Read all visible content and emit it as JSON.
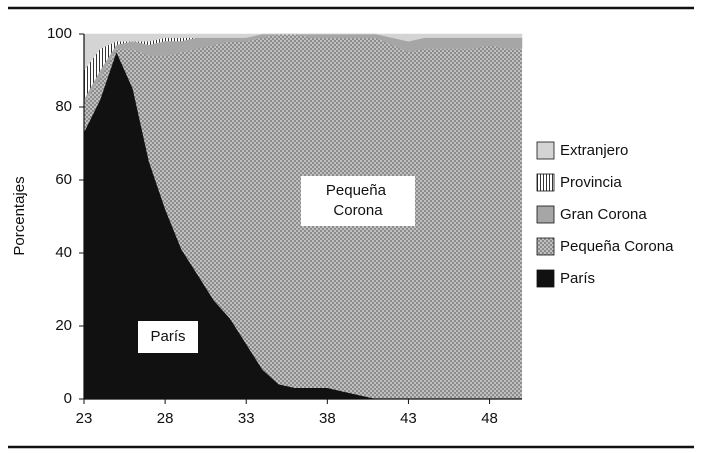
{
  "chart_data": {
    "type": "stacked-area",
    "y_label": "Porcentajes",
    "x": [
      23,
      24,
      25,
      26,
      27,
      28,
      29,
      30,
      31,
      32,
      33,
      34,
      35,
      36,
      37,
      38,
      39,
      40,
      41,
      42,
      43,
      44,
      45,
      46,
      47,
      48,
      49,
      50
    ],
    "xlim": [
      23,
      50
    ],
    "xticks": [
      23,
      28,
      33,
      38,
      43,
      48
    ],
    "ylim": [
      0,
      100
    ],
    "yticks": [
      0,
      20,
      40,
      60,
      80,
      100
    ],
    "series": [
      {
        "name": "París",
        "color": "#111111",
        "pattern": "solid",
        "values": [
          73,
          82,
          95,
          85,
          65,
          52,
          41,
          34,
          27,
          22,
          15,
          8,
          4,
          3,
          3,
          3,
          2,
          1,
          0,
          0,
          0,
          0,
          0,
          0,
          0,
          0,
          0,
          0
        ]
      },
      {
        "name": "Pequeña Corona",
        "color": "#8c8c8c",
        "pattern": "crosshatch",
        "values": [
          8,
          6,
          1,
          11,
          29,
          42,
          54,
          62,
          70,
          76,
          83,
          91,
          96,
          97,
          96,
          96,
          97,
          98,
          99,
          97,
          95,
          96,
          96,
          96,
          96,
          97,
          96,
          96
        ]
      },
      {
        "name": "Gran Corona",
        "color": "#a6a6a6",
        "pattern": "solid",
        "values": [
          1,
          2,
          1,
          2,
          3,
          4,
          3,
          3,
          2,
          1,
          1,
          1,
          0,
          0,
          1,
          1,
          1,
          1,
          1,
          2,
          3,
          3,
          3,
          3,
          3,
          2,
          3,
          3
        ]
      },
      {
        "name": "Provincia",
        "color": "#333333",
        "pattern": "vertical-stripes",
        "values": [
          8,
          6,
          1,
          0,
          1,
          1,
          1,
          0,
          0,
          0,
          0,
          0,
          0,
          0,
          0,
          0,
          0,
          0,
          0,
          0,
          0,
          0,
          0,
          0,
          0,
          0,
          0,
          0
        ]
      },
      {
        "name": "Extranjero",
        "color": "#d4d4d4",
        "pattern": "solid",
        "values": [
          10,
          4,
          2,
          2,
          2,
          1,
          1,
          1,
          1,
          1,
          1,
          0,
          0,
          0,
          0,
          0,
          0,
          0,
          0,
          1,
          2,
          1,
          1,
          1,
          1,
          1,
          1,
          1
        ]
      }
    ],
    "annotations": [
      "Pequeña Corona",
      "París"
    ]
  }
}
